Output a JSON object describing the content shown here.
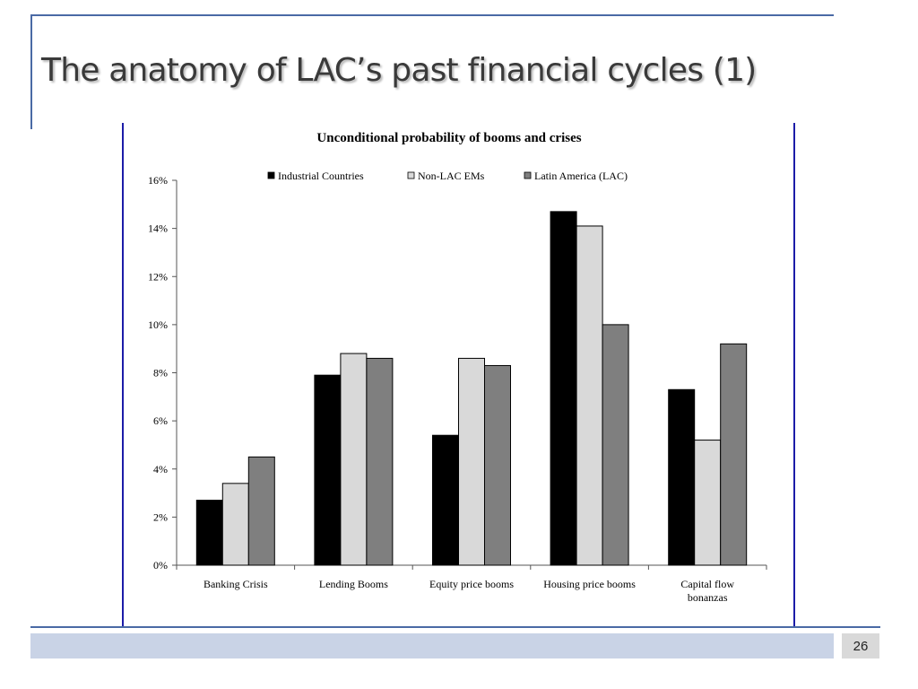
{
  "slide": {
    "title": "The anatomy of LAC’s past financial cycles (1)",
    "page_number": "26"
  },
  "colors": {
    "accent_line": "#4a6aa5",
    "chart_border": "#1c1ca8",
    "footer_bar": "#c9d3e6"
  },
  "chart_data": {
    "type": "bar",
    "title": "Unconditional probability of booms and crises",
    "xlabel": "",
    "ylabel": "",
    "categories": [
      "Banking Crisis",
      "Lending Booms",
      "Equity price booms",
      "Housing price booms",
      "Capital flow bonanzas"
    ],
    "y_ticks": [
      "0%",
      "2%",
      "4%",
      "6%",
      "8%",
      "10%",
      "12%",
      "14%",
      "16%"
    ],
    "ylim": [
      0,
      16
    ],
    "y_unit": "%",
    "legend_position": "top",
    "grid": false,
    "series": [
      {
        "name": "Industrial Countries",
        "color": "#000000",
        "values": [
          2.7,
          7.9,
          5.4,
          14.7,
          7.3
        ]
      },
      {
        "name": "Non-LAC EMs",
        "color": "#d9d9d9",
        "values": [
          3.4,
          8.8,
          8.6,
          14.1,
          5.2
        ]
      },
      {
        "name": "Latin America (LAC)",
        "color": "#7f7f7f",
        "values": [
          4.5,
          8.6,
          8.3,
          10.0,
          9.2
        ]
      }
    ]
  }
}
